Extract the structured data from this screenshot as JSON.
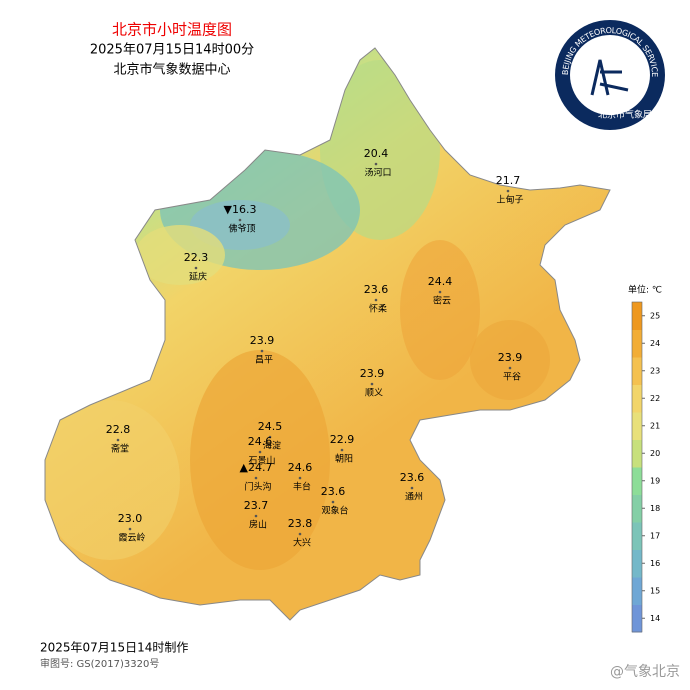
{
  "header": {
    "title": "北京市小时温度图",
    "time": "2025年07月15日14时00分",
    "agency": "北京市气象数据中心"
  },
  "logo": {
    "ring_text": "BEIJING METEOROLOGICAL SERVICE",
    "name": "北京市气象局"
  },
  "stations": [
    {
      "name": "汤河口",
      "value": "20.4"
    },
    {
      "name": "上甸子",
      "value": "21.7"
    },
    {
      "name": "佛爷顶",
      "value": "▼16.3"
    },
    {
      "name": "延庆",
      "value": "22.3"
    },
    {
      "name": "密云",
      "value": "24.4"
    },
    {
      "name": "怀柔",
      "value": "23.6"
    },
    {
      "name": "昌平",
      "value": "23.9"
    },
    {
      "name": "平谷",
      "value": "23.9"
    },
    {
      "name": "顺义",
      "value": "23.9"
    },
    {
      "name": "海淀",
      "value": "24.5"
    },
    {
      "name": "石景山",
      "value": "24.6"
    },
    {
      "name": "门头沟",
      "value": "▲24.7"
    },
    {
      "name": "丰台",
      "value": "24.6"
    },
    {
      "name": "朝阳",
      "value": "22.9"
    },
    {
      "name": "通州",
      "value": "23.6"
    },
    {
      "name": "观象台",
      "value": "23.6"
    },
    {
      "name": "大兴",
      "value": "23.8"
    },
    {
      "name": "房山",
      "value": "23.7"
    },
    {
      "name": "霞云岭",
      "value": "23.0"
    },
    {
      "name": "斋堂",
      "value": "22.8"
    }
  ],
  "legend": {
    "unit": "单位: ℃",
    "ticks": [
      14,
      15,
      16,
      17,
      18,
      19,
      20,
      21,
      22,
      23,
      24,
      25
    ],
    "colors": [
      "#6f95d8",
      "#6fa7d5",
      "#74b8c9",
      "#7cc4b8",
      "#84cfa6",
      "#8ddd98",
      "#c7e07c",
      "#e8e07a",
      "#f2d56a",
      "#f4c150",
      "#f2ad36",
      "#ee981f"
    ]
  },
  "footer": {
    "made": "2025年07月15日14时制作",
    "approval": "审图号: GS(2017)3320号",
    "watermark": "@气象北京"
  }
}
